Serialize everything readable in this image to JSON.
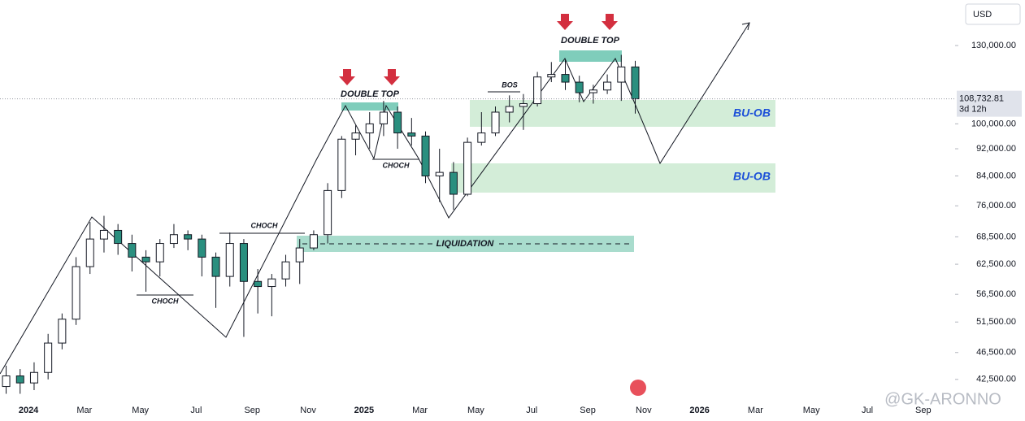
{
  "chart_data": {
    "type": "candlestick",
    "currency": "USD",
    "log_scale": true,
    "x": [
      -0.8,
      -0.3,
      0.2,
      0.7,
      1.2,
      1.7,
      2.2,
      2.7,
      3.2,
      3.7,
      4.2,
      4.7,
      5.2,
      5.7,
      6.2,
      6.7,
      7.2,
      7.7,
      8.2,
      8.7,
      9.2,
      9.7,
      10.2,
      10.7,
      11.2,
      11.7,
      12.2,
      12.7,
      13.2,
      13.7,
      14.2,
      14.7,
      15.2,
      15.7,
      16.2,
      16.7,
      17.2,
      17.7,
      18.2,
      18.7,
      19.2,
      19.7,
      20.2,
      20.7,
      21.2,
      21.7
    ],
    "open": [
      41500,
      43000,
      42000,
      43500,
      48000,
      52000,
      62000,
      68000,
      70000,
      67000,
      64000,
      63000,
      67000,
      69000,
      68000,
      64000,
      60000,
      67000,
      59000,
      58000,
      59500,
      63000,
      66000,
      69000,
      80000,
      95000,
      97000,
      100000,
      104000,
      97000,
      96000,
      84000,
      85000,
      79000,
      94000,
      97000,
      104000,
      106000,
      107000,
      117000,
      118000,
      115000,
      111000,
      112000,
      115000,
      121000
    ],
    "high": [
      44500,
      44000,
      45000,
      49500,
      53000,
      64000,
      72000,
      73500,
      71500,
      69000,
      65500,
      68000,
      71500,
      70000,
      69000,
      65000,
      69500,
      68000,
      61500,
      60500,
      64500,
      68000,
      70000,
      82000,
      96000,
      99500,
      104000,
      108000,
      106000,
      102000,
      97500,
      92000,
      88000,
      95500,
      104000,
      106000,
      110000,
      110500,
      119000,
      123000,
      124000,
      117500,
      114000,
      118000,
      126000,
      123500
    ],
    "low": [
      40500,
      40500,
      41000,
      42500,
      47000,
      51000,
      60500,
      65000,
      64500,
      61000,
      57000,
      60000,
      66000,
      65500,
      60000,
      54000,
      58000,
      49000,
      53000,
      52500,
      58000,
      58500,
      65500,
      67000,
      78000,
      90000,
      92000,
      96000,
      92000,
      93000,
      82000,
      77000,
      75000,
      78500,
      93000,
      96000,
      100500,
      98000,
      106000,
      115000,
      112000,
      107500,
      107000,
      110500,
      108000,
      103500
    ],
    "close": [
      43000,
      42000,
      43500,
      48000,
      52000,
      62000,
      68000,
      70000,
      67000,
      64000,
      63000,
      67000,
      69000,
      68000,
      64000,
      60000,
      67000,
      59000,
      58000,
      59500,
      63000,
      66000,
      69000,
      80000,
      95000,
      97000,
      100000,
      104000,
      97000,
      96000,
      84000,
      85000,
      79000,
      94000,
      97000,
      104000,
      106000,
      107000,
      117000,
      118000,
      115000,
      111000,
      112000,
      115000,
      121000,
      108733
    ],
    "up_color": "#ffffff",
    "down_color": "#2a8f7f",
    "xlim": [
      -1.02,
      33.14
    ],
    "xticks": [
      {
        "value": 0,
        "label": "2024"
      },
      {
        "value": 2,
        "label": "Mar"
      },
      {
        "value": 4,
        "label": "May"
      },
      {
        "value": 6,
        "label": "Jul"
      },
      {
        "value": 8,
        "label": "Sep"
      },
      {
        "value": 10,
        "label": "Nov"
      },
      {
        "value": 12,
        "label": "2025"
      },
      {
        "value": 14,
        "label": "Mar"
      },
      {
        "value": 16,
        "label": "May"
      },
      {
        "value": 18,
        "label": "Jul"
      },
      {
        "value": 20,
        "label": "Sep"
      },
      {
        "value": 22,
        "label": "Nov"
      },
      {
        "value": 24,
        "label": "2026"
      },
      {
        "value": 26,
        "label": "Mar"
      },
      {
        "value": 28,
        "label": "May"
      },
      {
        "value": 30,
        "label": "Jul"
      },
      {
        "value": 32,
        "label": "Sep"
      }
    ],
    "ylim": [
      39900,
      151400
    ],
    "yticks": [
      {
        "value": 42500,
        "label": "42,500.00"
      },
      {
        "value": 46500,
        "label": "46,500.00"
      },
      {
        "value": 51500,
        "label": "51,500.00"
      },
      {
        "value": 56500,
        "label": "56,500.00"
      },
      {
        "value": 62500,
        "label": "62,500.00"
      },
      {
        "value": 68500,
        "label": "68,500.00"
      },
      {
        "value": 76000,
        "label": "76,000.00"
      },
      {
        "value": 84000,
        "label": "84,000.00"
      },
      {
        "value": 92000,
        "label": "92,000.00"
      },
      {
        "value": 100000,
        "label": "100,000.00"
      },
      {
        "value": 130000,
        "label": "130,000.00"
      }
    ],
    "last_price": {
      "value": 108732.81,
      "label": "108,732.81",
      "countdown": "3d 12h"
    },
    "annotations": {
      "double_top": [
        "DOUBLE TOP",
        "DOUBLE TOP"
      ],
      "choch": [
        "CHOCH",
        "CHOCH",
        "CHOCH"
      ],
      "bos": "BOS",
      "liquidation": "LIQUIDATION",
      "bu_ob": [
        "BU-OB",
        "BU-OB"
      ]
    },
    "watermark": "@GK-ARONNO"
  }
}
